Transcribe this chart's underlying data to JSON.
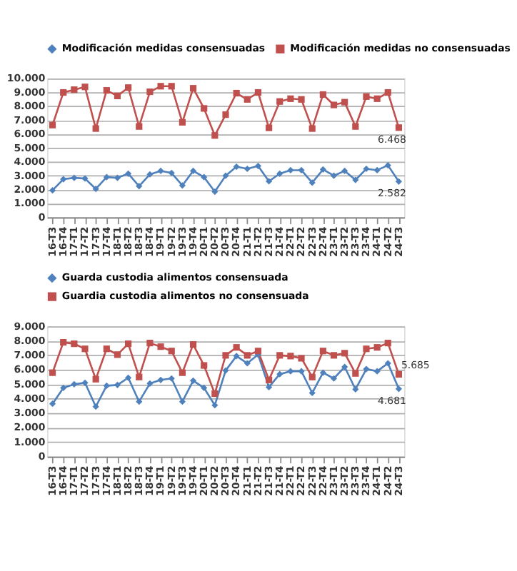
{
  "chart_data": [
    {
      "type": "line",
      "categories": [
        "16-T3",
        "16-T4",
        "17-T1",
        "17-T2",
        "17-T3",
        "17-T4",
        "18-T1",
        "18-T2",
        "18-T3",
        "18-T4",
        "19-T1",
        "19-T2",
        "19-T3",
        "19-T4",
        "20-T1",
        "20-T2",
        "20-T3",
        "20-T4",
        "21-T1",
        "21-T2",
        "21-T3",
        "21-T4",
        "22-T1",
        "22-T2",
        "22-T3",
        "22-T4",
        "23-T1",
        "23-T2",
        "23-T3",
        "23-T4",
        "24-T1",
        "24-T2",
        "24-T3"
      ],
      "series": [
        {
          "name": "Modificación medidas consensuadas",
          "color": "#4f81bd",
          "marker": "diamond",
          "values": [
            1950,
            2750,
            2850,
            2800,
            2050,
            2900,
            2850,
            3150,
            2250,
            3100,
            3350,
            3200,
            2300,
            3350,
            2900,
            1850,
            3000,
            3650,
            3500,
            3700,
            2600,
            3150,
            3400,
            3400,
            2500,
            3450,
            3000,
            3350,
            2700,
            3500,
            3400,
            3750,
            2582
          ],
          "value_labels": [
            null,
            null,
            null,
            null,
            null,
            null,
            null,
            null,
            null,
            null,
            null,
            null,
            null,
            null,
            null,
            null,
            null,
            null,
            null,
            null,
            null,
            null,
            null,
            null,
            null,
            null,
            null,
            null,
            null,
            null,
            null,
            null,
            "2.582"
          ]
        },
        {
          "name": "Modificación medidas no consensuadas",
          "color": "#c0504d",
          "marker": "square",
          "values": [
            6650,
            9000,
            9200,
            9400,
            6400,
            9150,
            8750,
            9350,
            6550,
            9050,
            9450,
            9450,
            6850,
            9300,
            7850,
            5900,
            7400,
            8950,
            8500,
            9000,
            6450,
            8350,
            8550,
            8500,
            6400,
            8850,
            8100,
            8300,
            6550,
            8700,
            8550,
            9000,
            6468
          ],
          "value_labels": [
            null,
            null,
            null,
            null,
            null,
            null,
            null,
            null,
            null,
            null,
            null,
            null,
            null,
            null,
            null,
            null,
            null,
            null,
            null,
            null,
            null,
            null,
            null,
            null,
            null,
            null,
            null,
            null,
            null,
            null,
            null,
            null,
            "6.468"
          ]
        }
      ],
      "ylim": [
        0,
        10000
      ],
      "yticks": [
        {
          "value": 0,
          "label": "0"
        },
        {
          "value": 1000,
          "label": "1.000"
        },
        {
          "value": 2000,
          "label": "2.000"
        },
        {
          "value": 3000,
          "label": "3.000"
        },
        {
          "value": 4000,
          "label": "4.000"
        },
        {
          "value": 5000,
          "label": "5.000"
        },
        {
          "value": 6000,
          "label": "6.000"
        },
        {
          "value": 7000,
          "label": "7.000"
        },
        {
          "value": 8000,
          "label": "8.000"
        },
        {
          "value": 9000,
          "label": "9.000"
        },
        {
          "value": 10000,
          "label": "10.000"
        }
      ],
      "grid": "y",
      "legend": "top"
    },
    {
      "type": "line",
      "categories": [
        "16-T3",
        "16-T4",
        "17-T1",
        "17-T2",
        "17-T3",
        "17-T4",
        "18-T1",
        "18-T2",
        "18-T3",
        "18-T4",
        "19-T1",
        "19-T2",
        "19-T3",
        "19-T4",
        "20-T1",
        "20-T2",
        "20-T3",
        "20-T4",
        "21-T1",
        "21-T2",
        "21-T3",
        "21-T4",
        "22-T1",
        "22-T2",
        "22-T3",
        "22-T4",
        "23-T1",
        "23-T2",
        "23-T3",
        "23-T4",
        "24-T1",
        "24-T2",
        "24-T3"
      ],
      "series": [
        {
          "name": "Guarda custodia alimentos consensuada",
          "color": "#4f81bd",
          "marker": "diamond",
          "values": [
            3650,
            4750,
            5000,
            5100,
            3450,
            4900,
            4950,
            5450,
            3800,
            5050,
            5300,
            5400,
            3800,
            5250,
            4750,
            3550,
            5950,
            6950,
            6450,
            7050,
            4800,
            5700,
            5900,
            5900,
            4400,
            5800,
            5400,
            6200,
            4650,
            6050,
            5900,
            6450,
            4681
          ],
          "value_labels": [
            null,
            null,
            null,
            null,
            null,
            null,
            null,
            null,
            null,
            null,
            null,
            null,
            null,
            null,
            null,
            null,
            null,
            null,
            null,
            null,
            null,
            null,
            null,
            null,
            null,
            null,
            null,
            null,
            null,
            null,
            null,
            null,
            "4.681"
          ]
        },
        {
          "name": "Guardia custodia alimentos no consensuada",
          "color": "#c0504d",
          "marker": "square",
          "values": [
            5800,
            7900,
            7800,
            7450,
            5350,
            7450,
            7050,
            7800,
            5500,
            7850,
            7600,
            7300,
            5800,
            7750,
            6300,
            4350,
            7000,
            7550,
            7000,
            7300,
            5300,
            7000,
            6950,
            6800,
            5500,
            7300,
            7000,
            7150,
            5750,
            7450,
            7550,
            7850,
            5685
          ],
          "value_labels": [
            null,
            null,
            null,
            null,
            null,
            null,
            null,
            null,
            null,
            null,
            null,
            null,
            null,
            null,
            null,
            null,
            null,
            null,
            null,
            null,
            null,
            null,
            null,
            null,
            null,
            null,
            null,
            null,
            null,
            null,
            null,
            null,
            "5.685"
          ]
        }
      ],
      "ylim": [
        0,
        9000
      ],
      "yticks": [
        {
          "value": 0,
          "label": "0"
        },
        {
          "value": 1000,
          "label": "1.000"
        },
        {
          "value": 2000,
          "label": "2.000"
        },
        {
          "value": 3000,
          "label": "3.000"
        },
        {
          "value": 4000,
          "label": "4.000"
        },
        {
          "value": 5000,
          "label": "5.000"
        },
        {
          "value": 6000,
          "label": "6.000"
        },
        {
          "value": 7000,
          "label": "7.000"
        },
        {
          "value": 8000,
          "label": "8.000"
        },
        {
          "value": 9000,
          "label": "9.000"
        }
      ],
      "grid": "y",
      "legend": "top"
    }
  ]
}
